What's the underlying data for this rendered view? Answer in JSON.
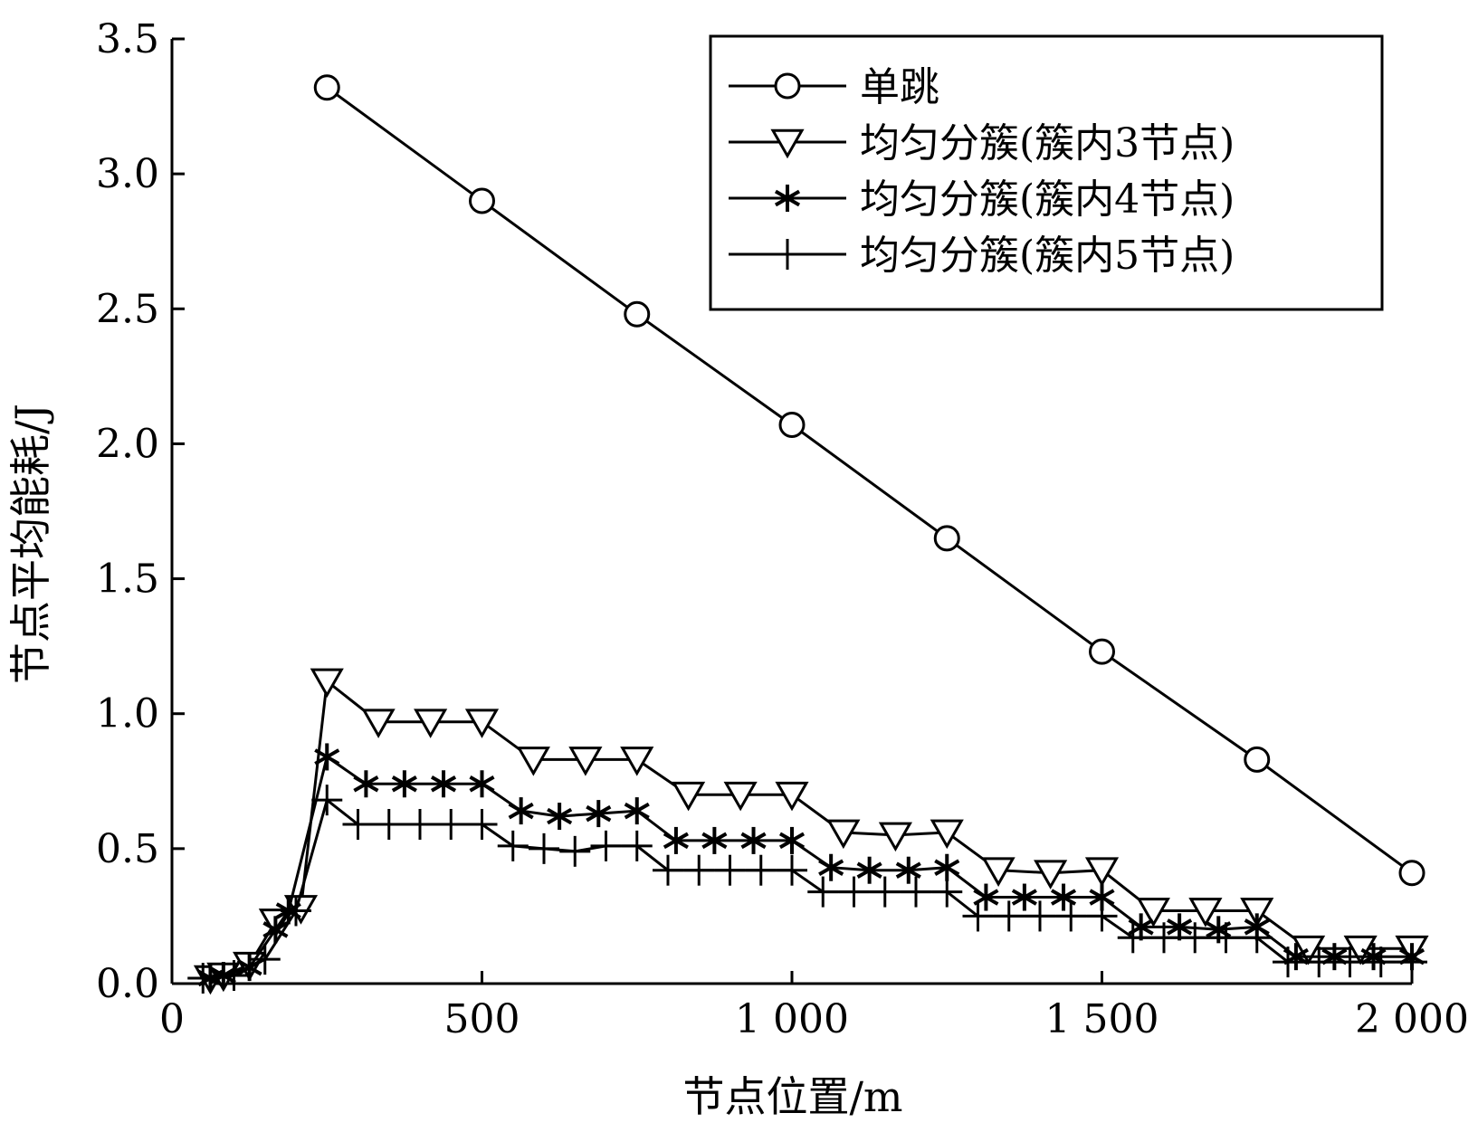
{
  "chart_data": {
    "type": "line",
    "xlabel": "节点位置/m",
    "ylabel": "节点平均能耗/J",
    "xlim": [
      0,
      2000
    ],
    "ylim": [
      0,
      3.5
    ],
    "x_ticks": [
      0,
      500,
      1000,
      1500,
      2000
    ],
    "x_tick_labels": [
      "0",
      "500",
      "1 000",
      "1 500",
      "2 000"
    ],
    "y_ticks": [
      0,
      0.5,
      1.0,
      1.5,
      2.0,
      2.5,
      3.0,
      3.5
    ],
    "y_tick_labels": [
      "0.0",
      "0.5",
      "1.0",
      "1.5",
      "2.0",
      "2.5",
      "3.0",
      "3.5"
    ],
    "grid": false,
    "legend_position": "top-right",
    "series": [
      {
        "name": "单跳",
        "marker": "circle",
        "x": [
          250,
          500,
          750,
          1000,
          1250,
          1500,
          1750,
          2000
        ],
        "y": [
          3.32,
          2.9,
          2.48,
          2.07,
          1.65,
          1.23,
          0.83,
          0.41
        ]
      },
      {
        "name": "均匀分簇(簇内3节点)",
        "marker": "triangle-down",
        "x": [
          62,
          83,
          125,
          167,
          208,
          250,
          333,
          417,
          500,
          583,
          667,
          750,
          833,
          917,
          1000,
          1083,
          1167,
          1250,
          1333,
          1417,
          1500,
          1583,
          1667,
          1750,
          1833,
          1917,
          2000
        ],
        "y": [
          0.02,
          0.03,
          0.07,
          0.23,
          0.28,
          1.12,
          0.97,
          0.97,
          0.97,
          0.83,
          0.83,
          0.83,
          0.7,
          0.7,
          0.7,
          0.56,
          0.55,
          0.56,
          0.42,
          0.41,
          0.42,
          0.27,
          0.27,
          0.27,
          0.13,
          0.13,
          0.13
        ]
      },
      {
        "name": "均匀分簇(簇内4节点)",
        "marker": "asterisk",
        "x": [
          62,
          83,
          125,
          167,
          188,
          250,
          313,
          375,
          438,
          500,
          563,
          625,
          688,
          750,
          813,
          875,
          938,
          1000,
          1063,
          1125,
          1188,
          1250,
          1313,
          1375,
          1438,
          1500,
          1563,
          1625,
          1688,
          1750,
          1813,
          1875,
          1938,
          2000
        ],
        "y": [
          0.02,
          0.03,
          0.06,
          0.2,
          0.27,
          0.84,
          0.74,
          0.74,
          0.74,
          0.74,
          0.64,
          0.62,
          0.63,
          0.64,
          0.53,
          0.53,
          0.53,
          0.53,
          0.43,
          0.42,
          0.42,
          0.43,
          0.32,
          0.32,
          0.32,
          0.32,
          0.21,
          0.21,
          0.2,
          0.21,
          0.1,
          0.1,
          0.1,
          0.1
        ]
      },
      {
        "name": "均匀分簇(簇内5节点)",
        "marker": "plus",
        "x": [
          50,
          100,
          150,
          200,
          250,
          300,
          350,
          400,
          450,
          500,
          550,
          600,
          650,
          700,
          750,
          800,
          850,
          900,
          950,
          1000,
          1050,
          1100,
          1150,
          1200,
          1250,
          1300,
          1350,
          1400,
          1450,
          1500,
          1550,
          1600,
          1650,
          1700,
          1750,
          1800,
          1850,
          1900,
          1950,
          2000
        ],
        "y": [
          0.02,
          0.03,
          0.09,
          0.27,
          0.68,
          0.59,
          0.59,
          0.59,
          0.59,
          0.59,
          0.51,
          0.5,
          0.49,
          0.51,
          0.51,
          0.42,
          0.42,
          0.42,
          0.42,
          0.42,
          0.34,
          0.34,
          0.34,
          0.34,
          0.34,
          0.25,
          0.25,
          0.25,
          0.25,
          0.25,
          0.17,
          0.17,
          0.17,
          0.17,
          0.17,
          0.08,
          0.08,
          0.08,
          0.08,
          0.08
        ]
      }
    ]
  }
}
